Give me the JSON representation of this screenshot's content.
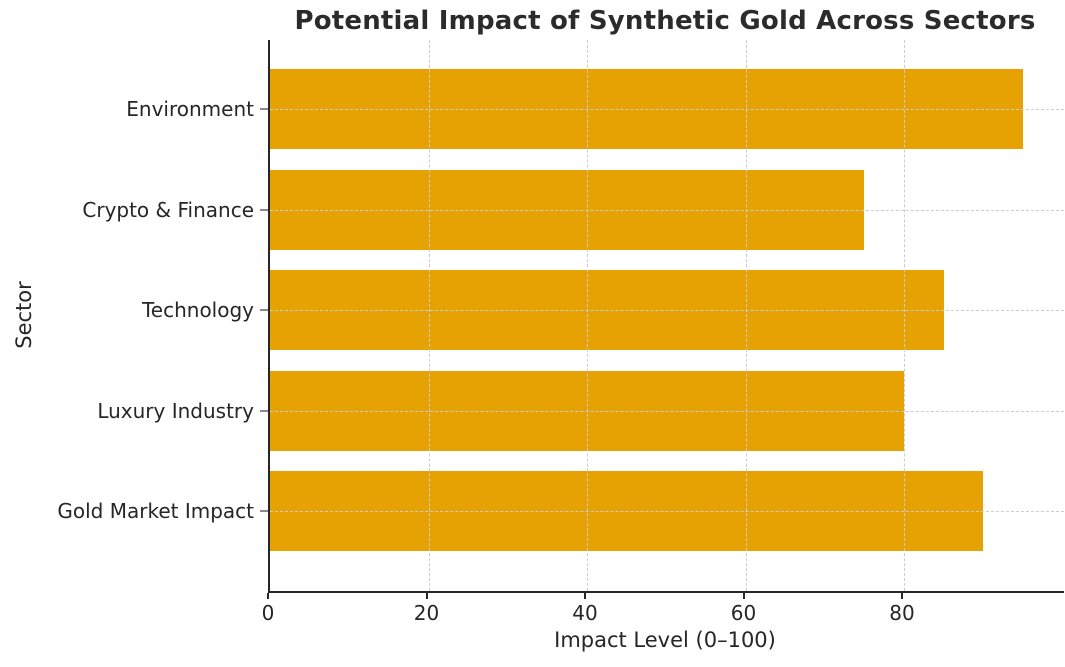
{
  "chart_data": {
    "type": "bar",
    "orientation": "horizontal",
    "title": "Potential Impact of Synthetic Gold Across Sectors",
    "categories": [
      "Environment",
      "Crypto & Finance",
      "Technology",
      "Luxury Industry",
      "Gold Market Impact"
    ],
    "values": [
      95,
      75,
      85,
      80,
      90
    ],
    "xlabel": "Impact Level (0–100)",
    "ylabel": "Sector",
    "xlim": [
      0,
      100
    ],
    "xticks": [
      0,
      20,
      40,
      60,
      80
    ],
    "bar_color": "#E6A203",
    "grid": "dashed",
    "grid_color": "#CCCCCC",
    "legend": "none"
  }
}
